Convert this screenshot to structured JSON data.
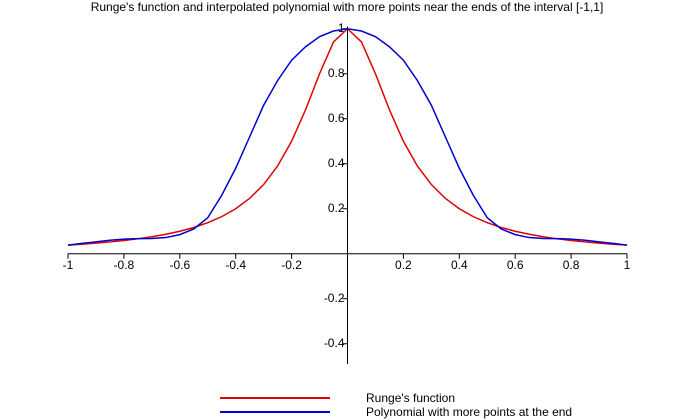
{
  "chart_data": {
    "type": "line",
    "title": "Runge's function and interpolated polynomial with more points near the ends of the interval [-1,1]",
    "x": [
      -1,
      -0.95,
      -0.9,
      -0.85,
      -0.8,
      -0.75,
      -0.7,
      -0.65,
      -0.6,
      -0.55,
      -0.5,
      -0.45,
      -0.4,
      -0.35,
      -0.3,
      -0.25,
      -0.2,
      -0.15,
      -0.1,
      -0.05,
      0,
      0.05,
      0.1,
      0.15,
      0.2,
      0.25,
      0.3,
      0.35,
      0.4,
      0.45,
      0.5,
      0.55,
      0.6,
      0.65,
      0.7,
      0.75,
      0.8,
      0.85,
      0.9,
      0.95,
      1
    ],
    "series": [
      {
        "name": "Runge's function",
        "color": "#e00000",
        "values": [
          0.0385,
          0.0424,
          0.0471,
          0.0525,
          0.0588,
          0.0664,
          0.0755,
          0.0865,
          0.1,
          0.1168,
          0.1379,
          0.165,
          0.2,
          0.2462,
          0.3077,
          0.3902,
          0.5,
          0.64,
          0.8,
          0.9412,
          1,
          0.9412,
          0.8,
          0.64,
          0.5,
          0.3902,
          0.3077,
          0.2462,
          0.2,
          0.165,
          0.1379,
          0.1168,
          0.1,
          0.0865,
          0.0755,
          0.0664,
          0.0588,
          0.0525,
          0.0471,
          0.0424,
          0.0385
        ]
      },
      {
        "name": "Polynomial with more points at the end",
        "color": "#0000d0",
        "values": [
          0.0385,
          0.046,
          0.053,
          0.06,
          0.065,
          0.067,
          0.068,
          0.072,
          0.085,
          0.11,
          0.16,
          0.26,
          0.38,
          0.52,
          0.66,
          0.77,
          0.86,
          0.92,
          0.965,
          0.99,
          1,
          0.99,
          0.965,
          0.92,
          0.86,
          0.77,
          0.66,
          0.52,
          0.38,
          0.26,
          0.16,
          0.11,
          0.085,
          0.072,
          0.068,
          0.067,
          0.065,
          0.06,
          0.053,
          0.046,
          0.0385
        ]
      }
    ],
    "xlim": [
      -1,
      1
    ],
    "ylim": [
      -0.49,
      1.01
    ],
    "xticks": [
      -1,
      -0.8,
      -0.6,
      -0.4,
      -0.2,
      0.2,
      0.4,
      0.6,
      0.8,
      1
    ],
    "yticks": [
      -0.4,
      -0.2,
      0.2,
      0.4,
      0.6,
      0.8,
      1
    ]
  }
}
